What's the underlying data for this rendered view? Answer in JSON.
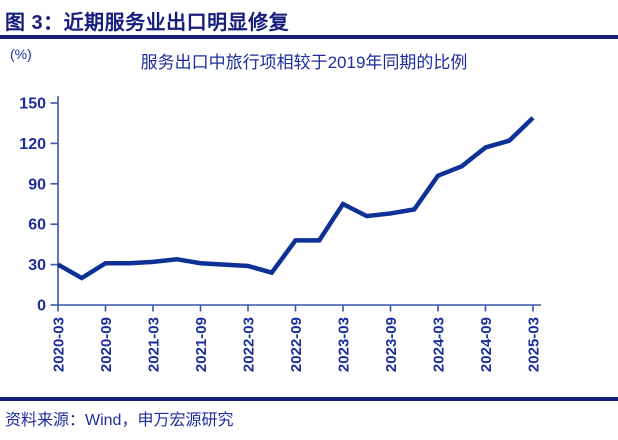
{
  "header": {
    "figure_title": "图 3：近期服务业出口明显修复"
  },
  "footer": {
    "source": "资料来源：Wind，申万宏源研究"
  },
  "colors": {
    "title_navy": "#161D7D",
    "rule_navy": "#161D7D",
    "line_navy": "#0E3196",
    "axis_blue": "#3A57AE",
    "label_blue": "#1D2E9C"
  },
  "chart_data": {
    "type": "line",
    "title": "服务出口中旅行项相较于2019年同期的比例",
    "unit_label": "(%)",
    "xlabel": "",
    "ylabel": "(%)",
    "x": [
      "2020-03",
      "2020-06",
      "2020-09",
      "2020-12",
      "2021-03",
      "2021-06",
      "2021-09",
      "2021-12",
      "2022-03",
      "2022-06",
      "2022-09",
      "2022-12",
      "2023-03",
      "2023-06",
      "2023-09",
      "2023-12",
      "2024-03",
      "2024-06",
      "2024-09",
      "2024-12",
      "2025-03"
    ],
    "values": [
      30,
      20,
      31,
      31,
      32,
      34,
      31,
      30,
      29,
      24,
      48,
      48,
      75,
      66,
      68,
      71,
      96,
      103,
      117,
      122,
      139
    ],
    "x_tick_labels": [
      "2020-03",
      "2020-09",
      "2021-03",
      "2021-09",
      "2022-03",
      "2022-09",
      "2023-03",
      "2023-09",
      "2024-03",
      "2024-09",
      "2025-03"
    ],
    "x_tick_every": 2,
    "ylim": [
      0,
      150
    ],
    "yticks": [
      0,
      30,
      60,
      90,
      120,
      150
    ],
    "grid": false,
    "legend": "none",
    "line_width": 4.5
  }
}
